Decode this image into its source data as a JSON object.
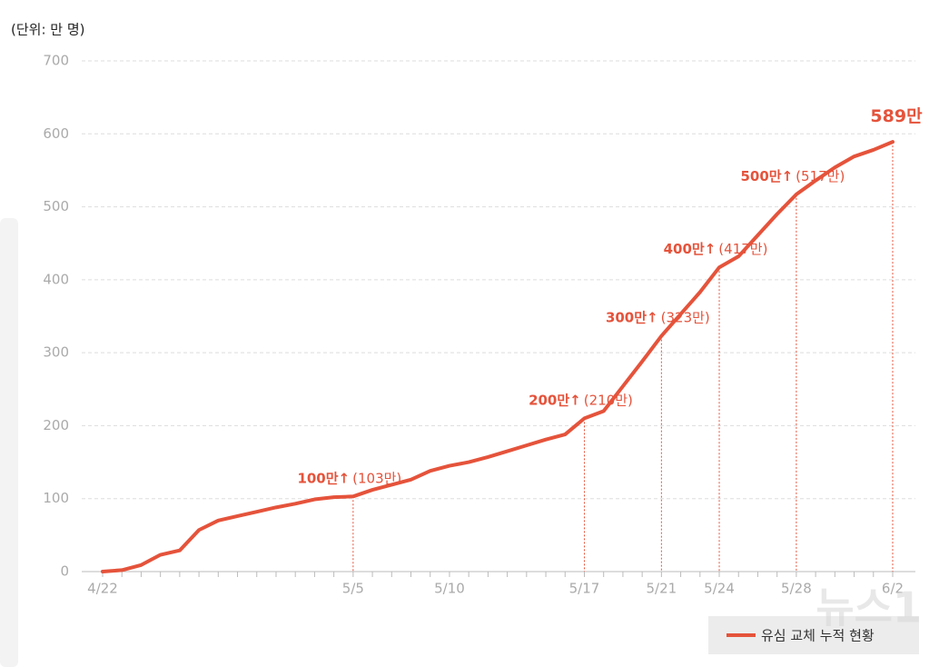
{
  "chart_data": {
    "type": "line",
    "unit_label": "(단위: 만 명)",
    "categories": [
      "4/22",
      null,
      null,
      null,
      null,
      null,
      null,
      null,
      null,
      null,
      null,
      null,
      null,
      "5/5",
      null,
      null,
      null,
      null,
      "5/10",
      null,
      null,
      null,
      null,
      null,
      null,
      "5/17",
      null,
      null,
      null,
      "5/21",
      null,
      null,
      "5/24",
      null,
      null,
      null,
      "5/28",
      null,
      null,
      null,
      null,
      "6/2"
    ],
    "series": [
      {
        "name": "유심 교체 누적 현황",
        "color": "#e5533b",
        "values": [
          0,
          2,
          9,
          23,
          29,
          57,
          70,
          76,
          82,
          88,
          93,
          99,
          102,
          103,
          112,
          119,
          126,
          138,
          145,
          150,
          157,
          165,
          173,
          181,
          188,
          210,
          220,
          254,
          288,
          323,
          353,
          383,
          417,
          432,
          461,
          490,
          517,
          536,
          554,
          569,
          578,
          589
        ]
      }
    ],
    "ylim": [
      0,
      700
    ],
    "yticks": [
      0,
      100,
      200,
      300,
      400,
      500,
      600,
      700
    ],
    "grid": true,
    "annotations": [
      {
        "x": "5/5",
        "bold": "100만↑",
        "text": "(103만)"
      },
      {
        "x": "5/17",
        "bold": "200만↑",
        "text": "(210만)"
      },
      {
        "x": "5/21",
        "bold": "300만↑",
        "text": "(323만)"
      },
      {
        "x": "5/24",
        "bold": "400만↑",
        "text": "(417만)"
      },
      {
        "x": "5/28",
        "bold": "500만↑",
        "text": "(517만)"
      },
      {
        "x": "6/2",
        "bold": "589만"
      }
    ],
    "watermark": "뉴스1"
  }
}
